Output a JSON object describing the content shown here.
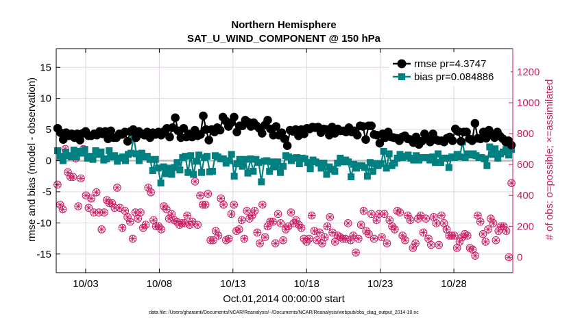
{
  "chart_data": {
    "type": "line",
    "title": "Northern Hemisphere",
    "subtitle": "SAT_U_WIND_COMPONENT @ 150 hPa",
    "xlabel": "Oct.01,2014 00:00:00 start",
    "ylabel": "rmse and bias (model - observation)",
    "ylabel_right": "# of obs: o=possible; ×=assimilated",
    "xlim": [
      1,
      32
    ],
    "ylim": [
      -18,
      18
    ],
    "ylim_right": [
      -100,
      1350
    ],
    "x_ticks": [
      3,
      8,
      13,
      18,
      23,
      28
    ],
    "x_tick_labels": [
      "10/03",
      "10/08",
      "10/13",
      "10/18",
      "10/23",
      "10/28"
    ],
    "y_ticks": [
      -15,
      -10,
      -5,
      0,
      5,
      10,
      15
    ],
    "y_ticks_right": [
      0,
      200,
      400,
      600,
      800,
      1000,
      1200
    ],
    "grid": true,
    "legend_position": "top-right",
    "footnote": "data file: /Users/gharamti/Documents/NCAR/Reanalysis/~/Documents/NCAR/Reanalysis/webpub/obs_diag_output_2014-10.nc",
    "colors": {
      "rmse": "#000000",
      "bias": "#008080",
      "obs": "#cc1a63",
      "zero_line": "#bbbbbb"
    },
    "series": [
      {
        "name": "rmse pr=4.3747",
        "axis": "left",
        "values": [
          5.2,
          4.5,
          3.4,
          4.5,
          4.0,
          4.3,
          3.7,
          4.3,
          3.3,
          4.4,
          4.7,
          4.0,
          4.0,
          4.3,
          4.1,
          4.7,
          4.3,
          4.7,
          3.5,
          4.8,
          3.7,
          3.7,
          4.3,
          4.2,
          4.6,
          3.1,
          4.7,
          5.0,
          3.7,
          4.7,
          4.3,
          4.1,
          4.6,
          3.7,
          4.5,
          4.2,
          4.6,
          4.1,
          4.7,
          5.2,
          3.8,
          5.3,
          6.9,
          4.8,
          3.7,
          5.2,
          3.8,
          4.3,
          3.8,
          4.9,
          4.0,
          4.2,
          7.2,
          5.0,
          3.3,
          5.0,
          4.6,
          5.3,
          4.9,
          7.0,
          6.4,
          5.5,
          6.1,
          7.0,
          4.6,
          5.6,
          5.6,
          6.5,
          6.2,
          5.5,
          6.1,
          5.6,
          5.2,
          4.4,
          5.7,
          6.5,
          5.1,
          4.1,
          5.5,
          4.1,
          4.5,
          3.5,
          2.4,
          4.9,
          4.7,
          5.0,
          4.0,
          5.0,
          4.3,
          5.2,
          5.1,
          5.4,
          5.3,
          5.4,
          4.5,
          5.1,
          5.0,
          4.1,
          5.4,
          4.4,
          5.1,
          4.8,
          4.8,
          4.6,
          5.3,
          4.6,
          4.8,
          4.1,
          5.6,
          5.5,
          3.4,
          5.6,
          5.6,
          4.2,
          4.1,
          2.8,
          4.3,
          3.7,
          4.6,
          3.8,
          3.7,
          3.6,
          3.2,
          3.8,
          4.0,
          3.5,
          3.4,
          2.9,
          3.8,
          2.6,
          3.1,
          4.3,
          3.8,
          3.0,
          4.3,
          3.4,
          3.2,
          3.2,
          3.0,
          3.6,
          3.8,
          3.2,
          5.1,
          4.7,
          3.1,
          4.6,
          4.6,
          3.5,
          3.2,
          6.0,
          3.6,
          3.5,
          4.6,
          3.6,
          4.9,
          4.3,
          3.7,
          4.6,
          3.9,
          3.5,
          3.0,
          3.2,
          2.5
        ]
      },
      {
        "name": "bias pr=0.084886",
        "axis": "left",
        "values": [
          1.6,
          0.7,
          0.0,
          1.3,
          0.8,
          0.6,
          1.7,
          0.6,
          1.5,
          1.2,
          1.8,
          0.4,
          0.7,
          0.2,
          1.6,
          1.0,
          1.4,
          0.1,
          0.3,
          1.6,
          0.6,
          0.8,
          -0.1,
          0.4,
          0.6,
          0.0,
          1.0,
          1.2,
          3.8,
          1.1,
          0.0,
          1.2,
          0.6,
          0.7,
          0.2,
          -1.6,
          0.2,
          -1.2,
          -3.6,
          -1.0,
          -2.1,
          -1.2,
          -2.2,
          -1.1,
          -0.3,
          -1.5,
          0.5,
          0.7,
          -1.9,
          0.8,
          -2.2,
          -0.1,
          0.9,
          -1.9,
          0.5,
          0.7,
          -1.8,
          -1.7,
          0.8,
          0.6,
          0.3,
          0.3,
          -0.4,
          0.0,
          1.0,
          -2.5,
          -0.5,
          0.2,
          -0.9,
          0.2,
          -2.0,
          0.3,
          -1.7,
          0.2,
          -0.3,
          -3.4,
          -0.1,
          0.0,
          -1.7,
          -0.2,
          -1.0,
          -0.2,
          -1.9,
          -0.9,
          0.8,
          0.6,
          0.0,
          0.4,
          0.5,
          -0.5,
          0.4,
          0.3,
          -0.3,
          -1.3,
          0.1,
          -0.2,
          -0.4,
          -1.2,
          -0.4,
          -2.2,
          -1.0,
          -1.4,
          -1.7,
          -0.4,
          0.4,
          -0.2,
          0.1,
          -0.2,
          -2.6,
          -0.6,
          -1.2,
          -0.8,
          -0.8,
          -1.1,
          -2.5,
          -0.3,
          -1.7,
          -0.5,
          -0.8,
          -0.5,
          1.5,
          -1.2,
          1.1,
          -0.8,
          -0.4,
          0.4,
          1.0,
          0.5,
          0.7,
          0.9,
          0.4,
          0.1,
          0.8,
          0.1,
          0.5,
          0.5,
          0.5,
          0.1,
          0.6,
          -0.3,
          1.1,
          -0.3,
          0.4,
          0.4,
          -1.1,
          0.6,
          0.5,
          1.0,
          0.6,
          3.0,
          0.5,
          1.1,
          0.9,
          1.1,
          0.8,
          0.5,
          0.5,
          0.3,
          -0.8,
          2.2,
          1.0,
          1.9,
          0.4,
          1.1,
          1.4,
          1.8,
          0.9,
          1.8
        ]
      },
      {
        "name": "# of obs possible",
        "axis": "right",
        "values": [
          470,
          340,
          310,
          700,
          550,
          520,
          520,
          640,
          330,
          510,
          700,
          400,
          320,
          380,
          290,
          420,
          290,
          180,
          290,
          370,
          350,
          350,
          320,
          450,
          320,
          190,
          300,
          260,
          230,
          120,
          290,
          250,
          290,
          190,
          210,
          450,
          420,
          240,
          200,
          200,
          180,
          330,
          310,
          250,
          280,
          240,
          230,
          210,
          220,
          220,
          270,
          210,
          230,
          490,
          210,
          400,
          340,
          340,
          410,
          110,
          110,
          170,
          140,
          380,
          340,
          110,
          120,
          280,
          340,
          170,
          180,
          240,
          120,
          300,
          250,
          270,
          300,
          160,
          90,
          340,
          130,
          200,
          230,
          230,
          90,
          280,
          220,
          110,
          180,
          200,
          290,
          220,
          240,
          210,
          190,
          120,
          100,
          120,
          270,
          170,
          110,
          160,
          90,
          130,
          200,
          260,
          160,
          100,
          140,
          130,
          120,
          120,
          220,
          110,
          140,
          30,
          120,
          210,
          300,
          170,
          150,
          280,
          120,
          240,
          280,
          130,
          280,
          90,
          240,
          200,
          180,
          300,
          290,
          140,
          110,
          270,
          240,
          60,
          90,
          250,
          270,
          160,
          250,
          120,
          80,
          260,
          220,
          80,
          270,
          220,
          180,
          140,
          140,
          140,
          60,
          100,
          130,
          150,
          140,
          60,
          50,
          10,
          270,
          230,
          150,
          100,
          180,
          250,
          220,
          110,
          170,
          200,
          200,
          170,
          0,
          480
        ]
      }
    ]
  }
}
